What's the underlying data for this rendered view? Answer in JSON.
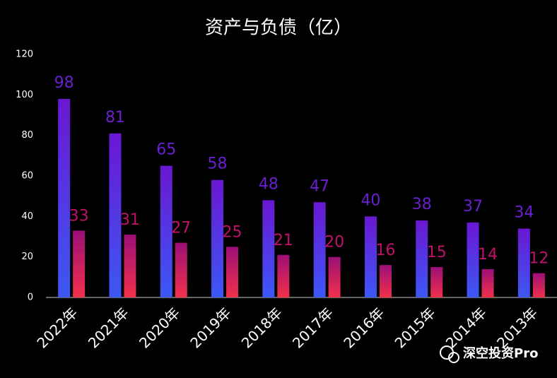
{
  "chart_data": {
    "type": "bar",
    "title": "资产与负债（亿）",
    "categories": [
      "2022年",
      "2021年",
      "2020年",
      "2019年",
      "2018年",
      "2017年",
      "2016年",
      "2015年",
      "2014年",
      "2013年"
    ],
    "series": [
      {
        "color": [
          "#6a17d2",
          "#3c58f4"
        ],
        "label_color": "#6a1fd0",
        "values": [
          98,
          81,
          65,
          58,
          48,
          47,
          40,
          38,
          37,
          34
        ]
      },
      {
        "color": [
          "#9c0f78",
          "#f2304a"
        ],
        "label_color": "#c0106a",
        "values": [
          33,
          31,
          27,
          25,
          21,
          20,
          16,
          15,
          14,
          12
        ]
      }
    ],
    "ylim": [
      0,
      120
    ],
    "yticks": [
      0,
      20,
      40,
      60,
      80,
      100,
      120
    ],
    "grid": false,
    "watermark": "深空投资Pro"
  }
}
